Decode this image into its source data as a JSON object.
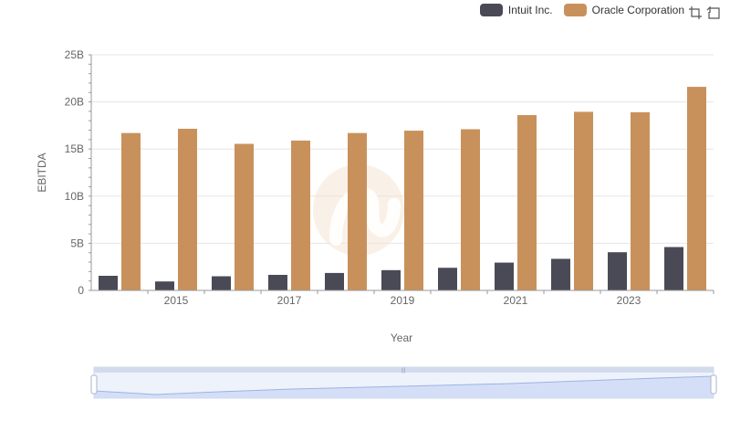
{
  "legend": {
    "items": [
      {
        "label": "Intuit Inc.",
        "color": "#4a4a57"
      },
      {
        "label": "Oracle Corporation",
        "color": "#c8915c"
      }
    ]
  },
  "toolbox": {
    "icons": [
      "zoom-icon",
      "restore-icon"
    ]
  },
  "chart_data": {
    "type": "bar",
    "xlabel": "Year",
    "ylabel": "EBITDA",
    "ylim": [
      0,
      25000000000
    ],
    "yticks": [
      "0",
      "5B",
      "10B",
      "15B",
      "20B",
      "25B"
    ],
    "xticks": [
      "2015",
      "2017",
      "2019",
      "2021",
      "2023"
    ],
    "categories": [
      "2014",
      "2015",
      "2016",
      "2017",
      "2018",
      "2019",
      "2020",
      "2021",
      "2022",
      "2023",
      "2024"
    ],
    "series": [
      {
        "name": "Intuit Inc.",
        "color": "#4a4a57",
        "values": [
          1550000000,
          950000000,
          1500000000,
          1650000000,
          1850000000,
          2150000000,
          2400000000,
          2950000000,
          3350000000,
          4050000000,
          4600000000
        ]
      },
      {
        "name": "Oracle Corporation",
        "color": "#c8915c",
        "values": [
          16700000000,
          17150000000,
          15550000000,
          15900000000,
          16700000000,
          16950000000,
          17100000000,
          18600000000,
          18950000000,
          18900000000,
          21600000000
        ]
      }
    ],
    "grid": true,
    "legend_position": "top-right",
    "data_zoom": {
      "start": 0,
      "end": 100
    }
  }
}
